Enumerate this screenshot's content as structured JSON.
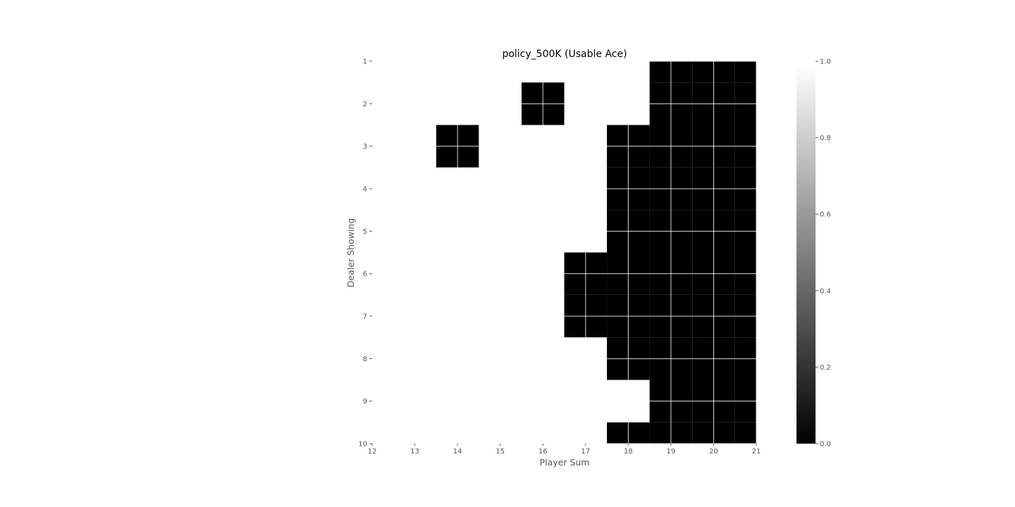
{
  "chart_data": {
    "type": "heatmap",
    "title": "policy_500K (Usable Ace)",
    "xlabel": "Player Sum",
    "ylabel": "Dealer Showing",
    "x_ticks": [
      "12",
      "13",
      "14",
      "15",
      "16",
      "17",
      "18",
      "19",
      "20",
      "21"
    ],
    "y_ticks": [
      "1",
      "2",
      "3",
      "4",
      "5",
      "6",
      "7",
      "8",
      "9",
      "10"
    ],
    "xlim": [
      12,
      21
    ],
    "ylim": [
      1,
      10
    ],
    "colormap": "gray",
    "colorbar": {
      "ticks": [
        "0.0",
        "0.2",
        "0.4",
        "0.6",
        "0.8",
        "1.0"
      ],
      "range": [
        0,
        1
      ]
    },
    "grid": true,
    "x_cells": [
      12,
      13,
      14,
      15,
      16,
      17,
      18,
      19,
      20,
      21
    ],
    "y_cells": [
      1,
      2,
      3,
      4,
      5,
      6,
      7,
      8,
      9,
      10
    ],
    "values": [
      [
        1,
        1,
        1,
        1,
        1,
        1,
        1,
        0,
        0,
        0
      ],
      [
        1,
        1,
        1,
        1,
        0,
        1,
        1,
        0,
        0,
        0
      ],
      [
        1,
        1,
        0,
        1,
        1,
        1,
        0,
        0,
        0,
        0
      ],
      [
        1,
        1,
        1,
        1,
        1,
        1,
        0,
        0,
        0,
        0
      ],
      [
        1,
        1,
        1,
        1,
        1,
        1,
        0,
        0,
        0,
        0
      ],
      [
        1,
        1,
        1,
        1,
        1,
        0,
        0,
        0,
        0,
        0
      ],
      [
        1,
        1,
        1,
        1,
        1,
        0,
        0,
        0,
        0,
        0
      ],
      [
        1,
        1,
        1,
        1,
        1,
        1,
        0,
        0,
        0,
        0
      ],
      [
        1,
        1,
        1,
        1,
        1,
        1,
        1,
        0,
        0,
        0
      ],
      [
        1,
        1,
        1,
        1,
        1,
        1,
        0,
        0,
        0,
        0
      ]
    ]
  }
}
